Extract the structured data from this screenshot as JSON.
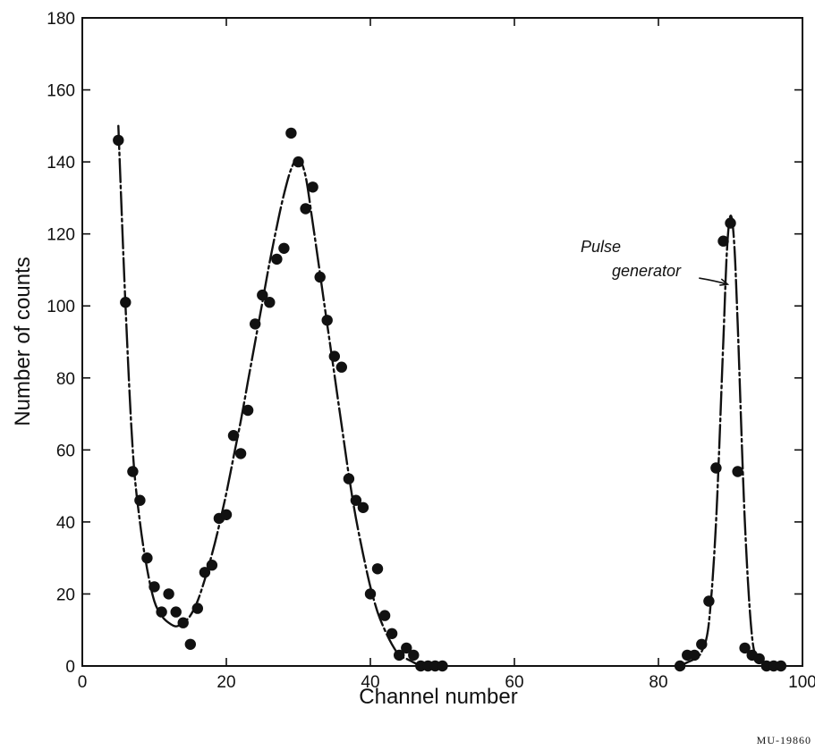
{
  "chart_data": {
    "type": "scatter",
    "xlabel": "Channel number",
    "ylabel": "Number of counts",
    "xlim": [
      0,
      100
    ],
    "ylim": [
      0,
      180
    ],
    "x_ticks": [
      "0",
      "20",
      "40",
      "60",
      "80",
      "100"
    ],
    "y_ticks": [
      "0",
      "20",
      "40",
      "60",
      "80",
      "100",
      "120",
      "140",
      "160",
      "180"
    ],
    "grid": false,
    "marker_color": "#111111",
    "series": [
      {
        "x": [
          5,
          6,
          7,
          8,
          9,
          10,
          11,
          12,
          13,
          14,
          15,
          16,
          17,
          18,
          19,
          20,
          21,
          22,
          23,
          24,
          25,
          26,
          27,
          28,
          29,
          30,
          31,
          32,
          33,
          34,
          35,
          36,
          37,
          38,
          39,
          40,
          41,
          42,
          43,
          44,
          45,
          46,
          47,
          48,
          49,
          50,
          83,
          84,
          85,
          86,
          87,
          88,
          89,
          90,
          91,
          92,
          93,
          94,
          95,
          96,
          97
        ],
        "y": [
          146,
          101,
          54,
          46,
          30,
          22,
          15,
          20,
          15,
          12,
          6,
          16,
          26,
          28,
          41,
          42,
          64,
          59,
          71,
          95,
          103,
          101,
          113,
          116,
          148,
          140,
          127,
          133,
          108,
          96,
          86,
          83,
          52,
          46,
          44,
          20,
          27,
          14,
          9,
          3,
          5,
          3,
          0,
          0,
          0,
          0,
          0,
          3,
          3,
          6,
          18,
          55,
          118,
          123,
          54,
          5,
          3,
          2,
          0,
          0,
          0
        ]
      }
    ],
    "fit_curves": [
      {
        "x": [
          5,
          6,
          7,
          8,
          9,
          10,
          11,
          12,
          13,
          14,
          15,
          16,
          17,
          18,
          19,
          20,
          21,
          22,
          23,
          24,
          25,
          26,
          27,
          28,
          29,
          30,
          31,
          32,
          33,
          34,
          35,
          36,
          37,
          38,
          39,
          40,
          41,
          42,
          43,
          44,
          45,
          46,
          47,
          48,
          49,
          50
        ],
        "y": [
          150,
          100,
          60,
          40,
          27,
          18,
          14,
          12,
          11,
          12,
          14,
          18,
          24,
          31,
          39,
          48,
          58,
          68,
          79,
          90,
          101,
          112,
          122,
          131,
          138,
          141,
          136,
          123,
          109,
          95,
          81,
          67,
          53,
          41,
          31,
          22,
          15,
          10,
          6,
          3,
          2,
          1,
          0,
          0,
          0,
          0
        ]
      },
      {
        "x": [
          83,
          84,
          85,
          86,
          87,
          88,
          89,
          89.5,
          90,
          90.5,
          91,
          92,
          93,
          94,
          95,
          96,
          97
        ],
        "y": [
          0,
          1,
          2,
          4,
          12,
          40,
          90,
          115,
          125,
          118,
          95,
          40,
          8,
          2,
          1,
          0,
          0
        ]
      }
    ],
    "annotations": [
      {
        "text_lines": [
          "Pulse",
          "generator"
        ],
        "points_to": {
          "x": 89.6,
          "y": 106
        }
      }
    ],
    "figure_id": "MU-19860"
  }
}
